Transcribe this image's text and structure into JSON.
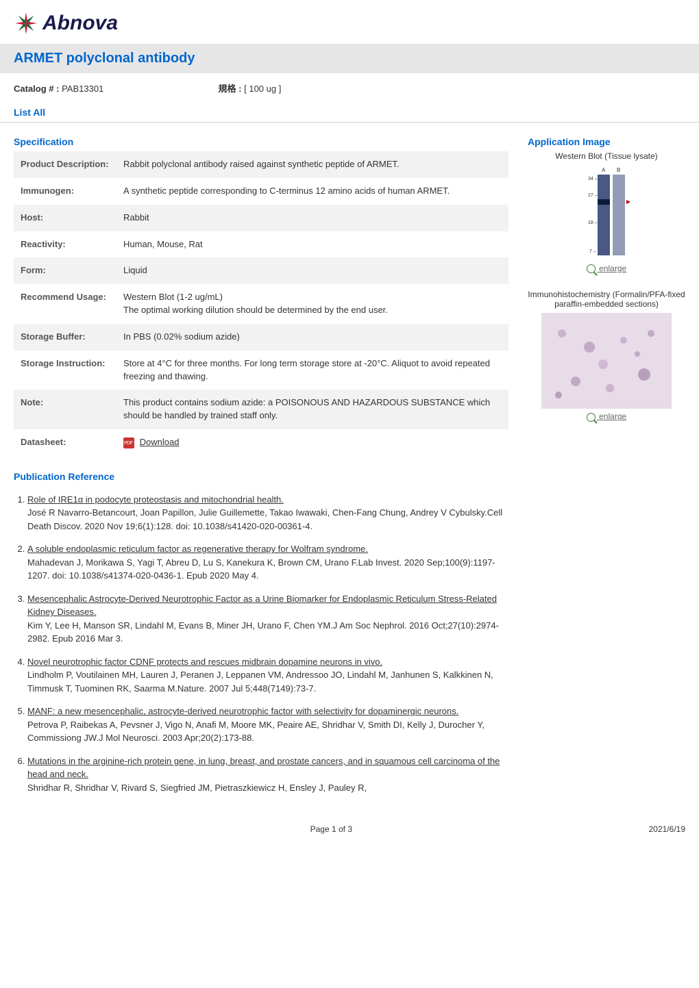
{
  "logo": {
    "brand": "Abnova"
  },
  "title": "ARMET polyclonal antibody",
  "meta": {
    "catalog_label": "Catalog # :",
    "catalog_value": "PAB13301",
    "size_label": "規格 :",
    "size_value": "[ 100 ug ]"
  },
  "tab": "List All",
  "spec_head": "Specification",
  "spec_rows": [
    {
      "k": "Product Description:",
      "v": "Rabbit polyclonal antibody raised against synthetic peptide of ARMET.",
      "shade": true
    },
    {
      "k": "Immunogen:",
      "v": "A synthetic peptide corresponding to C-terminus 12 amino acids of human ARMET.",
      "shade": false
    },
    {
      "k": "Host:",
      "v": "Rabbit",
      "shade": true
    },
    {
      "k": "Reactivity:",
      "v": "Human, Mouse, Rat",
      "shade": false
    },
    {
      "k": "Form:",
      "v": "Liquid",
      "shade": true
    },
    {
      "k": "Recommend Usage:",
      "v": "Western Blot (1-2 ug/mL)\nThe optimal working dilution should be determined by the end user.",
      "shade": false
    },
    {
      "k": "Storage Buffer:",
      "v": "In PBS (0.02% sodium azide)",
      "shade": true
    },
    {
      "k": "Storage Instruction:",
      "v": "Store at 4°C for three months. For long term storage store at -20°C. Aliquot to avoid repeated freezing and thawing.",
      "shade": false
    },
    {
      "k": "Note:",
      "v": "This product contains sodium azide: a POISONOUS AND HAZARDOUS SUBSTANCE which should be handled by trained staff only.",
      "shade": true
    }
  ],
  "datasheet": {
    "k": "Datasheet:",
    "v": "Download"
  },
  "pub_head": "Publication Reference",
  "pubs": [
    {
      "title": "Role of IRE1α in podocyte proteostasis and mitochondrial health.",
      "body": "José R Navarro-Betancourt, Joan Papillon, Julie Guillemette, Takao Iwawaki, Chen-Fang Chung, Andrey V Cybulsky.Cell Death Discov. 2020 Nov 19;6(1):128. doi: 10.1038/s41420-020-00361-4."
    },
    {
      "title": "A soluble endoplasmic reticulum factor as regenerative therapy for Wolfram syndrome.",
      "body": "Mahadevan J, Morikawa S, Yagi T, Abreu D, Lu S, Kanekura K, Brown CM, Urano F.Lab Invest. 2020 Sep;100(9):1197-1207. doi: 10.1038/s41374-020-0436-1. Epub 2020 May 4."
    },
    {
      "title": "Mesencephalic Astrocyte-Derived Neurotrophic Factor as a Urine Biomarker for Endoplasmic Reticulum Stress-Related Kidney Diseases.",
      "body": "Kim Y, Lee H, Manson SR, Lindahl M, Evans B, Miner JH, Urano F, Chen YM.J Am Soc Nephrol. 2016 Oct;27(10):2974-2982. Epub 2016 Mar 3."
    },
    {
      "title": "Novel neurotrophic factor CDNF protects and rescues midbrain dopamine neurons in vivo.",
      "body": "Lindholm P, Voutilainen MH, Lauren J, Peranen J, Leppanen VM, Andressoo JO, Lindahl M, Janhunen S, Kalkkinen N, Timmusk T, Tuominen RK, Saarma M.Nature. 2007 Jul 5;448(7149):73-7."
    },
    {
      "title": "MANF: a new mesencephalic, astrocyte-derived neurotrophic factor with selectivity for dopaminergic neurons.",
      "body": "Petrova P, Raibekas A, Pevsner J, Vigo N, Anafi M, Moore MK, Peaire AE, Shridhar V, Smith DI, Kelly J, Durocher Y, Commissiong JW.J Mol Neurosci. 2003 Apr;20(2):173-88."
    },
    {
      "title": "Mutations in the arginine-rich protein gene, in lung, breast, and prostate cancers, and in squamous cell carcinoma of the head and neck.",
      "body": "Shridhar R, Shridhar V, Rivard S, Siegfried JM, Pietraszkiewicz H, Ensley J, Pauley R,"
    }
  ],
  "app_head": "Application Image",
  "app1": {
    "caption": "Western Blot (Tissue lysate)",
    "lanes": [
      "A",
      "B"
    ],
    "markers": [
      "34",
      "27",
      "18",
      "7"
    ],
    "band_lane": "A",
    "band_between": [
      27,
      18
    ],
    "arrow_color": "#d00000",
    "lane_bg": "#3a4a7a",
    "enlarge": "enlarge"
  },
  "app2": {
    "caption": "Immunohistochemistry (Formalin/PFA-fixed paraffin-embedded sections)",
    "enlarge": "enlarge"
  },
  "footer": {
    "page": "Page 1 of 3",
    "date": "2021/6/19"
  },
  "colors": {
    "link_blue": "#0066cc",
    "row_shade": "#f2f2f2",
    "title_bg": "#e6e6e6",
    "logo_navy": "#1a1a4d"
  }
}
